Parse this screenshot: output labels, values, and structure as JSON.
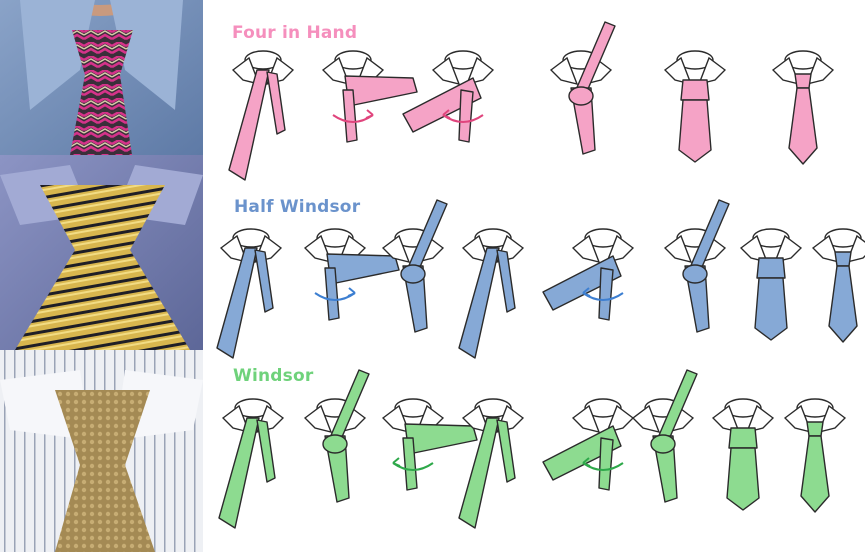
{
  "colors": {
    "four_in_hand": "#f5a3c6",
    "half_windsor": "#86a9d6",
    "windsor": "#8ddb90",
    "outline": "#2b2b2b"
  },
  "rows": [
    {
      "title": "Four in Hand",
      "color": "#f5a3c6",
      "title_color": "#f58fbd",
      "step_count": 6
    },
    {
      "title": "Half Windsor",
      "color": "#86a9d6",
      "title_color": "#6b93cc",
      "step_count": 8
    },
    {
      "title": "Windsor",
      "color": "#8ddb90",
      "title_color": "#6fd27b",
      "step_count": 8
    }
  ],
  "photos": [
    {
      "subject": "pink-chevron-tie-knot"
    },
    {
      "subject": "gold-striped-tie-knot"
    },
    {
      "subject": "bronze-patterned-tie-knot"
    }
  ]
}
